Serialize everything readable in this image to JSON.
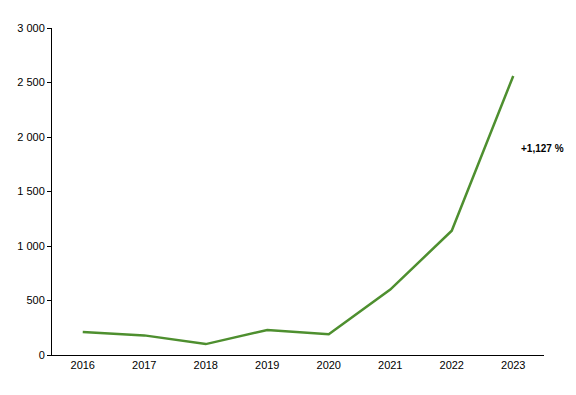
{
  "chart_data": {
    "type": "line",
    "categories": [
      "2016",
      "2017",
      "2018",
      "2019",
      "2020",
      "2021",
      "2022",
      "2023"
    ],
    "values": [
      210,
      180,
      100,
      230,
      190,
      600,
      1140,
      2560
    ],
    "color": "#4e8f2f",
    "annotation": "+1,127 %",
    "ylim": [
      0,
      3000
    ],
    "yticks": [
      0,
      500,
      {
        "value": 1000,
        "label": "1 000"
      },
      {
        "value": 1500,
        "label": "1 500"
      },
      {
        "value": 2000,
        "label": "2 000"
      },
      {
        "value": 2500,
        "label": "2 500"
      },
      {
        "value": 3000,
        "label": "3 000"
      }
    ],
    "grid": false
  }
}
